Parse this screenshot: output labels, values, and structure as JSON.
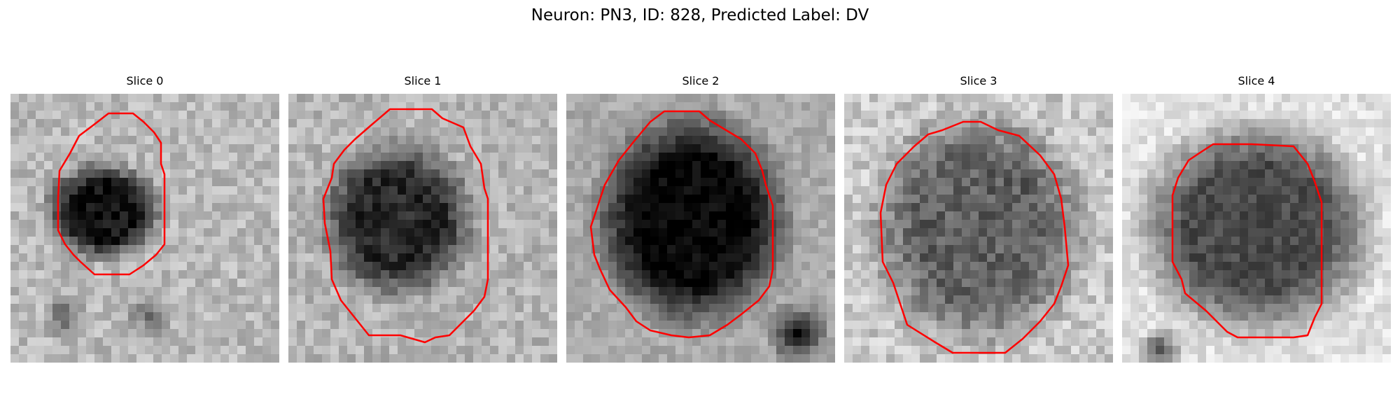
{
  "figure": {
    "suptitle": "Neuron: PN3, ID: 828, Predicted Label: DV"
  },
  "slices": [
    {
      "title": "Slice 0"
    },
    {
      "title": "Slice 1"
    },
    {
      "title": "Slice 2"
    },
    {
      "title": "Slice 3"
    },
    {
      "title": "Slice 4"
    }
  ],
  "colors": {
    "contour": "#ff0000",
    "background": "#ffffff"
  }
}
